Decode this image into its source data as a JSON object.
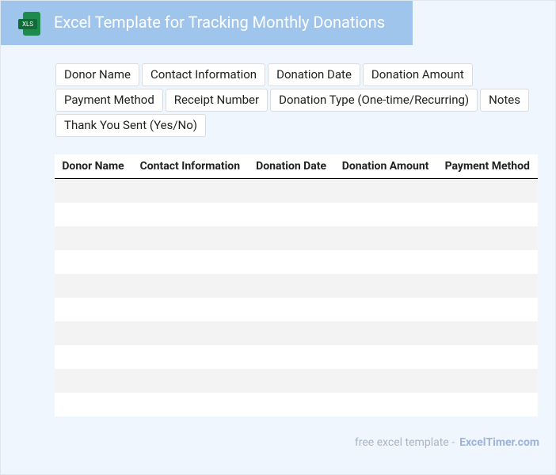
{
  "header": {
    "icon_label": "XLS",
    "title": "Excel Template for Tracking Monthly Donations"
  },
  "tags": [
    "Donor Name",
    "Contact Information",
    "Donation Date",
    "Donation Amount",
    "Payment Method",
    "Receipt Number",
    "Donation Type (One-time/Recurring)",
    "Notes",
    "Thank You Sent (Yes/No)"
  ],
  "table": {
    "headers": [
      "Donor Name",
      "Contact Information",
      "Donation Date",
      "Donation Amount",
      "Payment Method"
    ]
  },
  "footer": {
    "text": "free excel template -",
    "link": "ExcelTimer.com"
  }
}
